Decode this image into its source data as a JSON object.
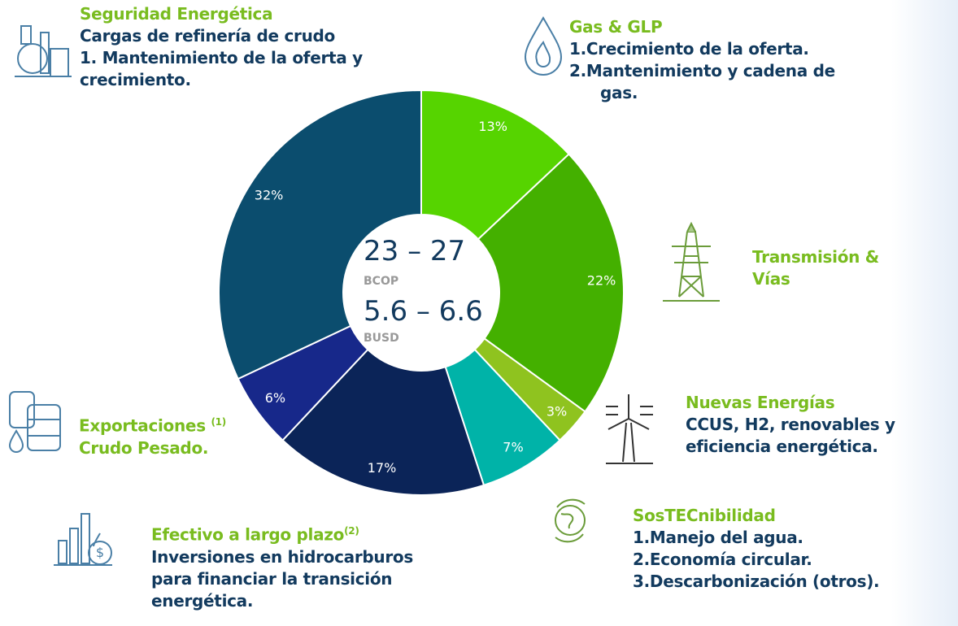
{
  "chart_data": {
    "type": "donut",
    "values": [
      13,
      22,
      3,
      7,
      17,
      6,
      32
    ],
    "value_labels": [
      "13%",
      "22%",
      "3%",
      "7%",
      "17%",
      "6%",
      "32%"
    ],
    "colors": [
      "#56d400",
      "#44b000",
      "#8fc31f",
      "#00b3a8",
      "#0b2458",
      "#17288a",
      "#0b4d6e"
    ],
    "center_text": [
      "23 – 27",
      "BCOP",
      "5.6 – 6.6",
      "BUSD"
    ]
  },
  "annotations": [
    {
      "title": "Seguridad Energética",
      "lines": [
        "Cargas de refinería de crudo",
        "1. Mantenimiento de la oferta y",
        "crecimiento."
      ]
    },
    {
      "title": "Gas & GLP",
      "lines": [
        "1.",
        "Crecimiento de la oferta.",
        "2.",
        "Mantenimiento y cadena de",
        "gas."
      ]
    },
    {
      "title": "Transmisión &",
      "lines": [
        "Vías"
      ]
    },
    {
      "title": "Nuevas Energías",
      "lines": [
        "CCUS, H2, renovables y",
        "eficiencia energética."
      ]
    },
    {
      "title": "SosTECnibilidad",
      "lines": [
        "1.",
        "Manejo del agua.",
        "2.",
        "Economía circular.",
        "3.",
        "Descarbonización (otros)."
      ]
    },
    {
      "title": "Efectivo a largo plazo",
      "sup": "(2)",
      "lines": [
        "Inversiones en hidrocarburos",
        "para financiar la transición",
        "energética."
      ]
    },
    {
      "title": "Exportaciones",
      "sup": "(1)",
      "lines": [
        "Crudo Pesado."
      ]
    }
  ]
}
